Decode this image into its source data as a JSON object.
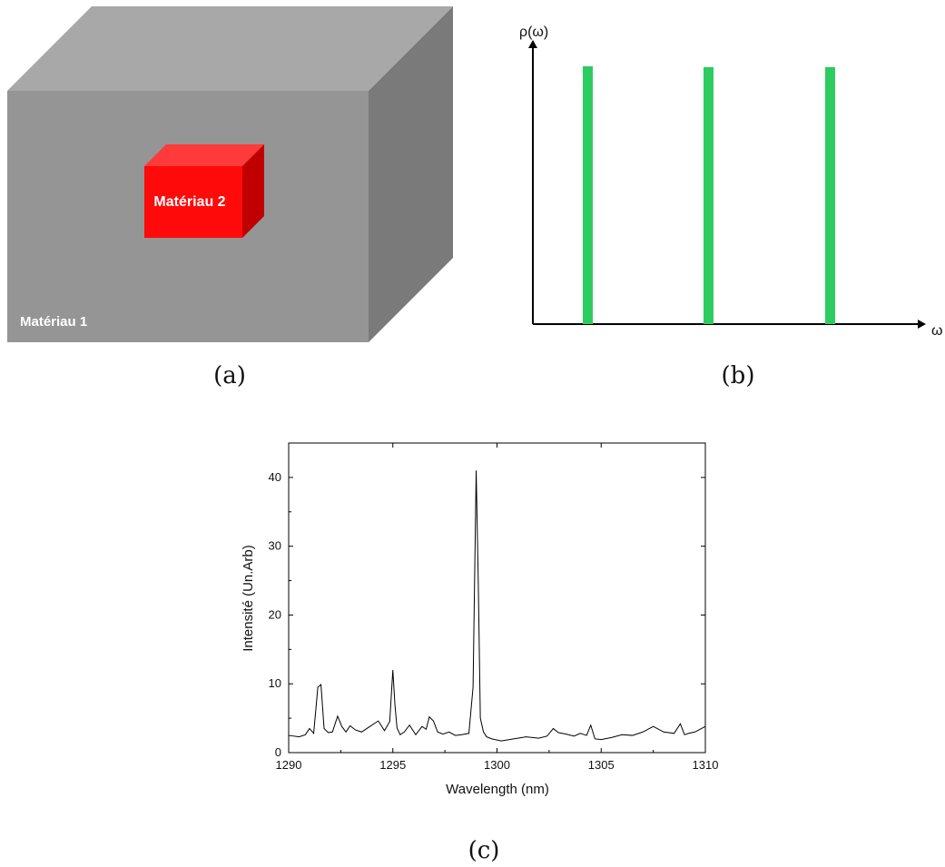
{
  "panel_a": {
    "material_outer": "Matériau 1",
    "material_inner": "Matériau 2",
    "caption": "(a)"
  },
  "panel_b": {
    "y_label": "ρ(ω)",
    "x_label": "ω",
    "caption": "(b)",
    "bar_color": "#2ecc60"
  },
  "panel_c": {
    "caption": "(c)"
  },
  "chart_data": {
    "type": "line",
    "title": "",
    "xlabel": "Wavelength (nm)",
    "ylabel": "Intensité (Un.Arb)",
    "xlim": [
      1290,
      1310
    ],
    "ylim": [
      0,
      45
    ],
    "xticks": [
      1290,
      1295,
      1300,
      1305,
      1310
    ],
    "yticks": [
      0,
      10,
      20,
      30,
      40
    ],
    "grid": false,
    "series": [
      {
        "x": [
          1290,
          1290.5,
          1290.8,
          1291.0,
          1291.2,
          1291.4,
          1291.55,
          1291.7,
          1291.9,
          1292.1,
          1292.35,
          1292.55,
          1292.75,
          1292.95,
          1293.2,
          1293.5,
          1293.9,
          1294.3,
          1294.6,
          1294.85,
          1295.0,
          1295.1,
          1295.2,
          1295.35,
          1295.55,
          1295.8,
          1296.1,
          1296.4,
          1296.6,
          1296.75,
          1296.95,
          1297.15,
          1297.4,
          1297.7,
          1298.0,
          1298.3,
          1298.65,
          1298.85,
          1299.0,
          1299.1,
          1299.2,
          1299.35,
          1299.5,
          1299.75,
          1300.2,
          1300.8,
          1301.4,
          1302.0,
          1302.4,
          1302.7,
          1302.95,
          1303.3,
          1303.7,
          1304.0,
          1304.3,
          1304.5,
          1304.7,
          1305.0,
          1305.5,
          1306.0,
          1306.5,
          1307.0,
          1307.5,
          1308.0,
          1308.5,
          1308.8,
          1309.0,
          1309.2,
          1309.5,
          1310.0
        ],
        "y": [
          2.5,
          2.3,
          2.6,
          3.5,
          2.8,
          9.5,
          9.9,
          3.5,
          2.9,
          3.0,
          5.3,
          3.8,
          3.0,
          3.9,
          3.3,
          3.0,
          3.8,
          4.6,
          3.2,
          4.5,
          12.0,
          7.0,
          3.6,
          2.6,
          3.0,
          4.0,
          2.6,
          3.8,
          3.4,
          5.2,
          4.6,
          3.0,
          2.7,
          3.0,
          2.5,
          2.6,
          2.8,
          9.5,
          41.0,
          25.0,
          5.0,
          3.0,
          2.3,
          2.0,
          1.7,
          2.0,
          2.3,
          2.1,
          2.4,
          3.5,
          2.9,
          2.7,
          2.4,
          2.8,
          2.5,
          4.0,
          2.0,
          1.9,
          2.2,
          2.6,
          2.5,
          3.0,
          3.8,
          3.0,
          2.8,
          4.2,
          2.6,
          2.8,
          3.0,
          3.8
        ]
      }
    ]
  }
}
